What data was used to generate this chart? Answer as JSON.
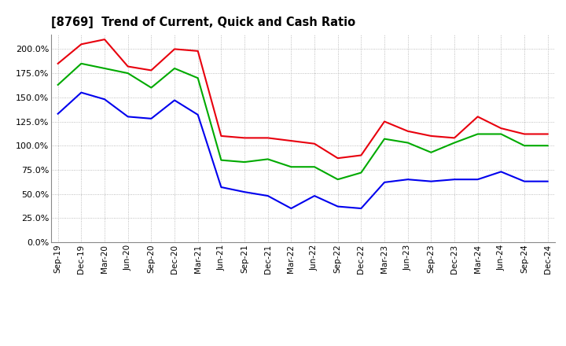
{
  "title": "[8769]  Trend of Current, Quick and Cash Ratio",
  "x_labels": [
    "Sep-19",
    "Dec-19",
    "Mar-20",
    "Jun-20",
    "Sep-20",
    "Dec-20",
    "Mar-21",
    "Jun-21",
    "Sep-21",
    "Dec-21",
    "Mar-22",
    "Jun-22",
    "Sep-22",
    "Dec-22",
    "Mar-23",
    "Jun-23",
    "Sep-23",
    "Dec-23",
    "Mar-24",
    "Jun-24",
    "Sep-24",
    "Dec-24"
  ],
  "current_ratio": [
    185,
    205,
    210,
    182,
    178,
    200,
    198,
    110,
    108,
    108,
    105,
    102,
    87,
    90,
    125,
    115,
    110,
    108,
    130,
    118,
    112,
    112
  ],
  "quick_ratio": [
    163,
    185,
    180,
    175,
    160,
    180,
    170,
    85,
    83,
    86,
    78,
    78,
    65,
    72,
    107,
    103,
    93,
    103,
    112,
    112,
    100,
    100
  ],
  "cash_ratio": [
    133,
    155,
    148,
    130,
    128,
    147,
    132,
    57,
    52,
    48,
    35,
    48,
    37,
    35,
    62,
    65,
    63,
    65,
    65,
    73,
    63,
    63
  ],
  "ylim": [
    0,
    215
  ],
  "yticks": [
    0,
    25,
    50,
    75,
    100,
    125,
    150,
    175,
    200
  ],
  "current_color": "#e8000d",
  "quick_color": "#00aa00",
  "cash_color": "#0000ee",
  "bg_color": "#ffffff",
  "plot_bg_color": "#ffffff",
  "grid_color": "#aaaaaa",
  "linewidth": 1.5
}
